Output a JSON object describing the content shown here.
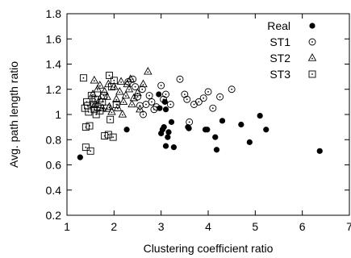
{
  "chart_data": {
    "type": "scatter",
    "title": "",
    "xlabel": "Clustering coefficient ratio",
    "ylabel": "Avg. path length ratio",
    "xlim": [
      1,
      7
    ],
    "ylim": [
      0.2,
      1.8
    ],
    "xticks": [
      1,
      2,
      3,
      4,
      5,
      6,
      7
    ],
    "yticks": [
      0.2,
      0.4,
      0.6,
      0.8,
      1.0,
      1.2,
      1.4,
      1.6,
      1.8
    ],
    "xtick_labels": [
      "1",
      "2",
      "3",
      "4",
      "5",
      "6",
      "7"
    ],
    "ytick_labels": [
      "0.2",
      "0.4",
      "0.6",
      "0.8",
      "1",
      "1.2",
      "1.4",
      "1.6",
      "1.8"
    ],
    "grid": false,
    "legend_position": "top-right",
    "series": [
      {
        "name": "Real",
        "marker": "filled-circle",
        "points": [
          [
            1.28,
            0.66
          ],
          [
            2.27,
            0.88
          ],
          [
            2.95,
            1.16
          ],
          [
            2.97,
            1.05
          ],
          [
            3.0,
            0.85
          ],
          [
            3.03,
            0.88
          ],
          [
            3.06,
            0.9
          ],
          [
            3.08,
            1.1
          ],
          [
            3.1,
            0.75
          ],
          [
            3.14,
            0.82
          ],
          [
            3.16,
            0.86
          ],
          [
            3.22,
            0.94
          ],
          [
            3.27,
            0.74
          ],
          [
            3.1,
            1.04
          ],
          [
            3.57,
            0.9
          ],
          [
            3.59,
            0.89
          ],
          [
            3.94,
            0.88
          ],
          [
            3.98,
            0.88
          ],
          [
            4.15,
            0.82
          ],
          [
            4.18,
            0.72
          ],
          [
            4.3,
            0.95
          ],
          [
            4.7,
            0.92
          ],
          [
            4.88,
            0.78
          ],
          [
            5.1,
            0.99
          ],
          [
            5.23,
            0.88
          ],
          [
            6.37,
            0.71
          ]
        ]
      },
      {
        "name": "ST1",
        "marker": "circle-dot",
        "points": [
          [
            2.3,
            1.26
          ],
          [
            2.4,
            1.28
          ],
          [
            2.45,
            1.22
          ],
          [
            2.5,
            1.14
          ],
          [
            2.55,
            1.07
          ],
          [
            2.6,
            1.2
          ],
          [
            2.62,
            1.0
          ],
          [
            2.68,
            1.08
          ],
          [
            2.75,
            1.15
          ],
          [
            2.8,
            1.1
          ],
          [
            2.85,
            1.04
          ],
          [
            2.9,
            1.06
          ],
          [
            3.0,
            1.23
          ],
          [
            3.05,
            1.12
          ],
          [
            3.1,
            1.16
          ],
          [
            3.2,
            1.08
          ],
          [
            3.4,
            1.28
          ],
          [
            3.5,
            1.16
          ],
          [
            3.55,
            1.12
          ],
          [
            3.6,
            0.94
          ],
          [
            3.7,
            1.08
          ],
          [
            3.8,
            1.1
          ],
          [
            3.9,
            1.13
          ],
          [
            4.0,
            1.18
          ],
          [
            4.1,
            1.05
          ],
          [
            4.25,
            1.14
          ],
          [
            4.5,
            1.2
          ]
        ]
      },
      {
        "name": "ST2",
        "marker": "triangle-dot",
        "points": [
          [
            1.55,
            1.16
          ],
          [
            1.6,
            1.08
          ],
          [
            1.65,
            1.2
          ],
          [
            1.7,
            1.12
          ],
          [
            1.75,
            1.05
          ],
          [
            1.8,
            1.18
          ],
          [
            1.85,
            1.14
          ],
          [
            1.9,
            1.06
          ],
          [
            1.95,
            1.02
          ],
          [
            2.0,
            1.22
          ],
          [
            2.05,
            1.12
          ],
          [
            2.08,
            1.05
          ],
          [
            2.12,
            1.18
          ],
          [
            2.15,
            1.26
          ],
          [
            2.2,
            1.1
          ],
          [
            2.25,
            1.15
          ],
          [
            2.28,
            1.24
          ],
          [
            2.32,
            1.2
          ],
          [
            2.38,
            1.08
          ],
          [
            2.42,
            1.13
          ],
          [
            2.5,
            1.17
          ],
          [
            2.55,
            1.04
          ],
          [
            2.62,
            1.24
          ],
          [
            2.72,
            1.34
          ],
          [
            1.58,
            1.27
          ],
          [
            1.7,
            1.23
          ],
          [
            1.88,
            1.24
          ],
          [
            2.18,
            1.0
          ],
          [
            2.35,
            1.28
          ]
        ]
      },
      {
        "name": "ST3",
        "marker": "square-dot",
        "points": [
          [
            1.35,
            1.29
          ],
          [
            1.38,
            1.05
          ],
          [
            1.4,
            0.9
          ],
          [
            1.4,
            0.74
          ],
          [
            1.42,
            1.1
          ],
          [
            1.44,
            1.07
          ],
          [
            1.46,
            1.02
          ],
          [
            1.48,
            0.91
          ],
          [
            1.5,
            0.71
          ],
          [
            1.52,
            1.15
          ],
          [
            1.55,
            1.08
          ],
          [
            1.58,
            1.04
          ],
          [
            1.6,
            1.12
          ],
          [
            1.62,
            1.0
          ],
          [
            1.65,
            1.06
          ],
          [
            1.7,
            1.03
          ],
          [
            1.75,
            1.1
          ],
          [
            1.78,
            1.15
          ],
          [
            1.8,
            0.83
          ],
          [
            1.85,
            1.05
          ],
          [
            1.88,
            0.84
          ],
          [
            1.9,
            1.31
          ],
          [
            1.92,
            0.96
          ],
          [
            1.95,
            1.22
          ],
          [
            1.98,
            0.82
          ],
          [
            2.0,
            1.27
          ],
          [
            2.05,
            1.08
          ]
        ]
      }
    ]
  }
}
